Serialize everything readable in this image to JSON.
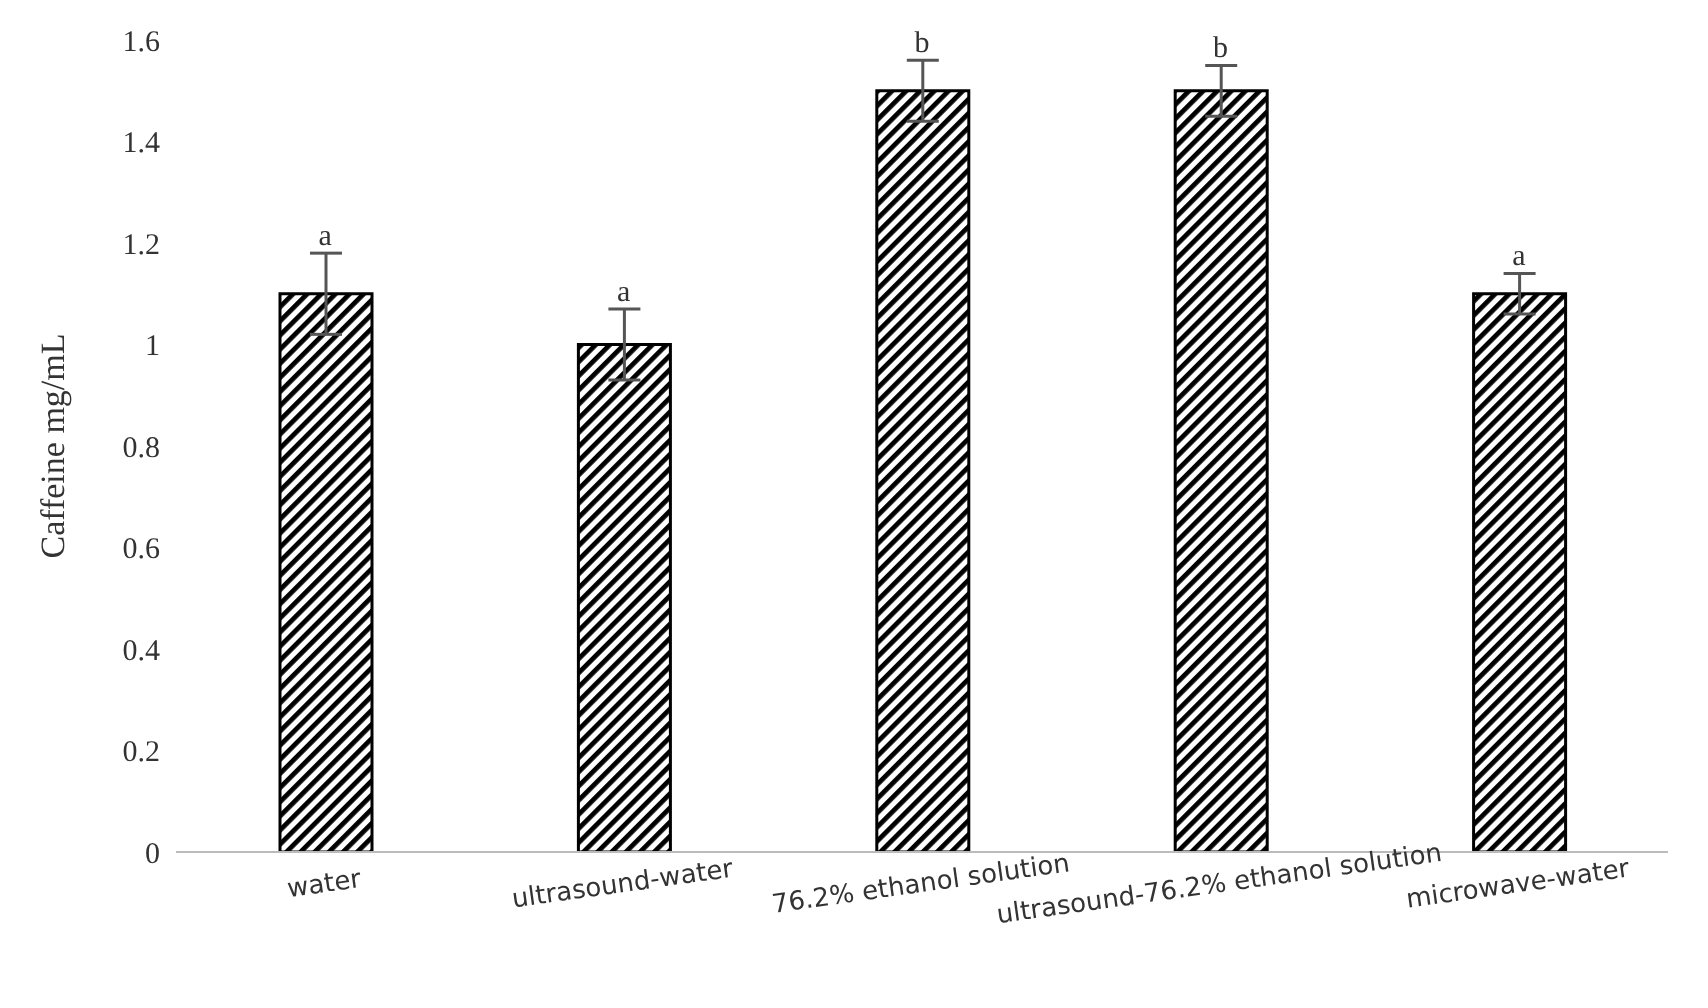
{
  "chart_data": {
    "type": "bar",
    "ylabel": "Caffeine mg/mL",
    "categories": [
      "water",
      "ultrasound-water",
      "76.2% ethanol solution",
      "ultrasound-76.2% ethanol solution",
      "microwave-water"
    ],
    "values": [
      1.1,
      1.0,
      1.5,
      1.5,
      1.1
    ],
    "errors": [
      0.08,
      0.07,
      0.06,
      0.05,
      0.04
    ],
    "color": "#000000",
    "ylim": [
      0,
      1.6
    ],
    "yticks": [
      0,
      0.2,
      0.4,
      0.6,
      0.8,
      1,
      1.2,
      1.4,
      1.6
    ],
    "grid": false,
    "legend": false,
    "annotations": [
      {
        "text": "a",
        "x": "water",
        "y": 1.18
      },
      {
        "text": "a",
        "x": "ultrasound-water",
        "y": 1.07
      },
      {
        "text": "b",
        "x": "76.2% ethanol solution",
        "y": 1.56
      },
      {
        "text": "b",
        "x": "ultrasound-76.2% ethanol solution",
        "y": 1.55
      },
      {
        "text": "a",
        "x": "microwave-water",
        "y": 1.14
      }
    ]
  }
}
